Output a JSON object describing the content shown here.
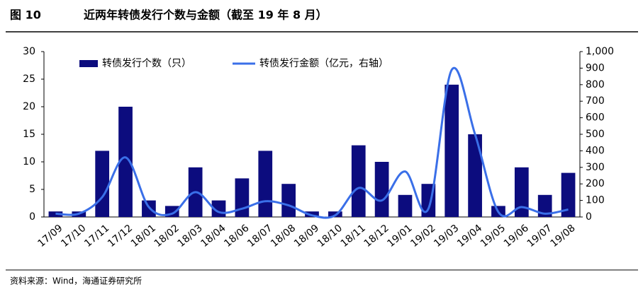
{
  "figure_label": "图 10",
  "source": "资料来源：Wind，海通证券研究所",
  "chart_data": {
    "type": "bar-line",
    "title": "近两年转债发行个数与金额（截至 19 年 8 月）",
    "categories": [
      "17/09",
      "17/10",
      "17/11",
      "17/12",
      "18/01",
      "18/02",
      "18/03",
      "18/04",
      "18/06",
      "18/07",
      "18/08",
      "18/09",
      "18/10",
      "18/11",
      "18/12",
      "19/01",
      "19/02",
      "19/03",
      "19/04",
      "19/05",
      "19/06",
      "19/07",
      "19/08"
    ],
    "series": [
      {
        "name": "转债发行个数（只）",
        "color": "#0c0c7e",
        "kind": "bar",
        "values": [
          1,
          1,
          12,
          20,
          3,
          2,
          9,
          3,
          7,
          12,
          6,
          1,
          1,
          13,
          10,
          4,
          6,
          24,
          15,
          2,
          9,
          4,
          8
        ]
      },
      {
        "name": "转债发行金额（亿元，右轴）",
        "color": "#3a6fe8",
        "kind": "line",
        "axis": "y2",
        "values": [
          20,
          20,
          120,
          360,
          60,
          20,
          150,
          30,
          50,
          95,
          70,
          10,
          10,
          175,
          100,
          275,
          50,
          890,
          500,
          30,
          60,
          20,
          45
        ]
      }
    ],
    "ylim": [
      0,
      30
    ],
    "yticks": [
      0,
      5,
      10,
      15,
      20,
      25,
      30
    ],
    "y2lim": [
      0,
      1000
    ],
    "y2ticks": [
      0,
      100,
      200,
      300,
      400,
      500,
      600,
      700,
      800,
      900,
      {
        "value": 1000,
        "label": "1,000"
      }
    ]
  }
}
